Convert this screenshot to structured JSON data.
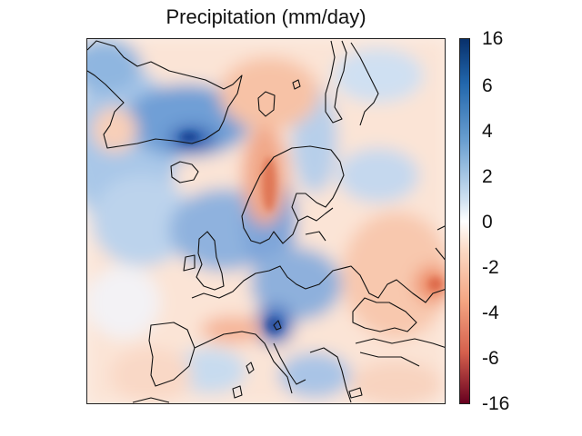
{
  "title": "Precipitation (mm/day)",
  "colorbar": {
    "ticks": [
      "16",
      "6",
      "4",
      "2",
      "0",
      "-2",
      "-4",
      "-6",
      "-16"
    ],
    "colors": {
      "max": "#08306b",
      "high": "#2166ac",
      "mid_pos": "#6a9fd1",
      "zero": "#ffffff",
      "mid_neg": "#f4a582",
      "low": "#d6604d",
      "min": "#67001f"
    }
  },
  "map": {
    "region": "Europe",
    "coastline_color": "#111111"
  }
}
